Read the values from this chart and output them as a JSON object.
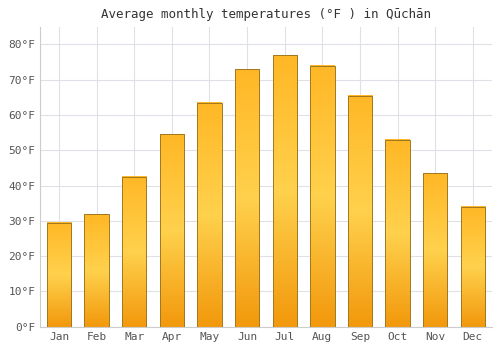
{
  "title": "Average monthly temperatures (°F ) in Qūchān",
  "months": [
    "Jan",
    "Feb",
    "Mar",
    "Apr",
    "May",
    "Jun",
    "Jul",
    "Aug",
    "Sep",
    "Oct",
    "Nov",
    "Dec"
  ],
  "values": [
    29.5,
    32.0,
    42.5,
    54.5,
    63.5,
    73.0,
    77.0,
    74.0,
    65.5,
    53.0,
    43.5,
    34.0
  ],
  "bar_color_main": "#FFA500",
  "bar_color_light": "#FFD060",
  "bar_edge_color": "#888844",
  "background_color": "#FFFFFF",
  "plot_bg_color": "#FFFFFF",
  "grid_color": "#E0E0E8",
  "ylim": [
    0,
    85
  ],
  "yticks": [
    0,
    10,
    20,
    30,
    40,
    50,
    60,
    70,
    80
  ],
  "ytick_labels": [
    "0°F",
    "10°F",
    "20°F",
    "30°F",
    "40°F",
    "50°F",
    "60°F",
    "70°F",
    "80°F"
  ],
  "title_fontsize": 9,
  "tick_fontsize": 8,
  "font_family": "monospace"
}
